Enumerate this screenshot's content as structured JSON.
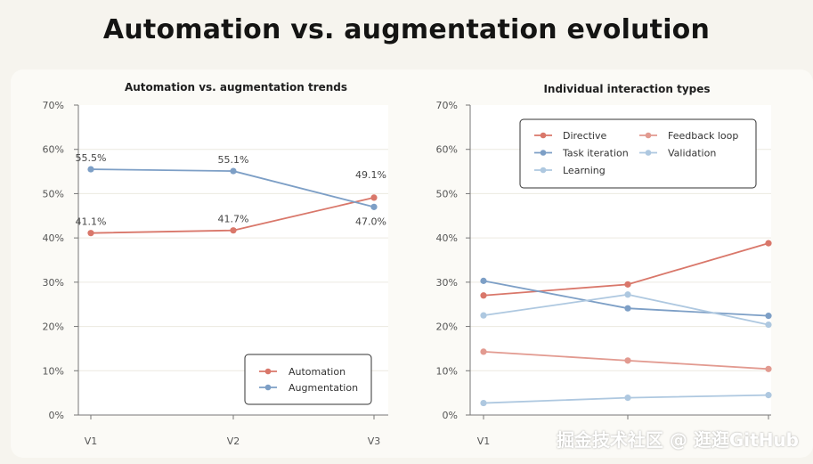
{
  "page": {
    "title": "Automation vs. augmentation evolution",
    "watermark": "掘金技术社区 @ 逛逛GitHub"
  },
  "colors": {
    "red": "#d9776a",
    "blue": "#7d9fc6",
    "light_red": "#e29a90",
    "light_blue": "#aec8e0",
    "grid": "#ece9e0",
    "plot_bg": "#ffffff",
    "axis_text": "#555555"
  },
  "chart_data": [
    {
      "type": "line",
      "title": "Automation vs. augmentation trends",
      "xlabel": "",
      "ylabel": "",
      "x": [
        "V1",
        "V2",
        "V3"
      ],
      "ylim": [
        0,
        70
      ],
      "yticks": [
        "0%",
        "10%",
        "20%",
        "30%",
        "40%",
        "50%",
        "60%",
        "70%"
      ],
      "grid": true,
      "legend_position": "bottom-right",
      "series": [
        {
          "name": "Automation",
          "color": "red",
          "values": [
            41.1,
            41.7,
            49.1
          ],
          "labels": [
            "41.1%",
            "41.7%",
            "49.1%"
          ]
        },
        {
          "name": "Augmentation",
          "color": "blue",
          "values": [
            55.5,
            55.1,
            47.0
          ],
          "labels": [
            "55.5%",
            "55.1%",
            "47.0%"
          ]
        }
      ]
    },
    {
      "type": "line",
      "title": "Individual interaction types",
      "xlabel": "",
      "ylabel": "",
      "x": [
        "V1",
        "V2",
        "V3"
      ],
      "visible_x_labels": [
        "V1",
        "",
        ""
      ],
      "ylim": [
        0,
        70
      ],
      "yticks": [
        "0%",
        "10%",
        "20%",
        "30%",
        "40%",
        "50%",
        "60%",
        "70%"
      ],
      "grid": true,
      "legend_position": "top",
      "series": [
        {
          "name": "Directive",
          "color": "red",
          "values": [
            27.0,
            29.5,
            38.8
          ]
        },
        {
          "name": "Feedback loop",
          "color": "light_red",
          "values": [
            14.3,
            12.3,
            10.4
          ]
        },
        {
          "name": "Task iteration",
          "color": "blue",
          "values": [
            30.3,
            24.1,
            22.4
          ]
        },
        {
          "name": "Validation",
          "color": "light_blue",
          "values": [
            2.7,
            3.9,
            4.5
          ]
        },
        {
          "name": "Learning",
          "color": "light_blue",
          "values": [
            22.5,
            27.2,
            20.4
          ]
        }
      ]
    }
  ]
}
